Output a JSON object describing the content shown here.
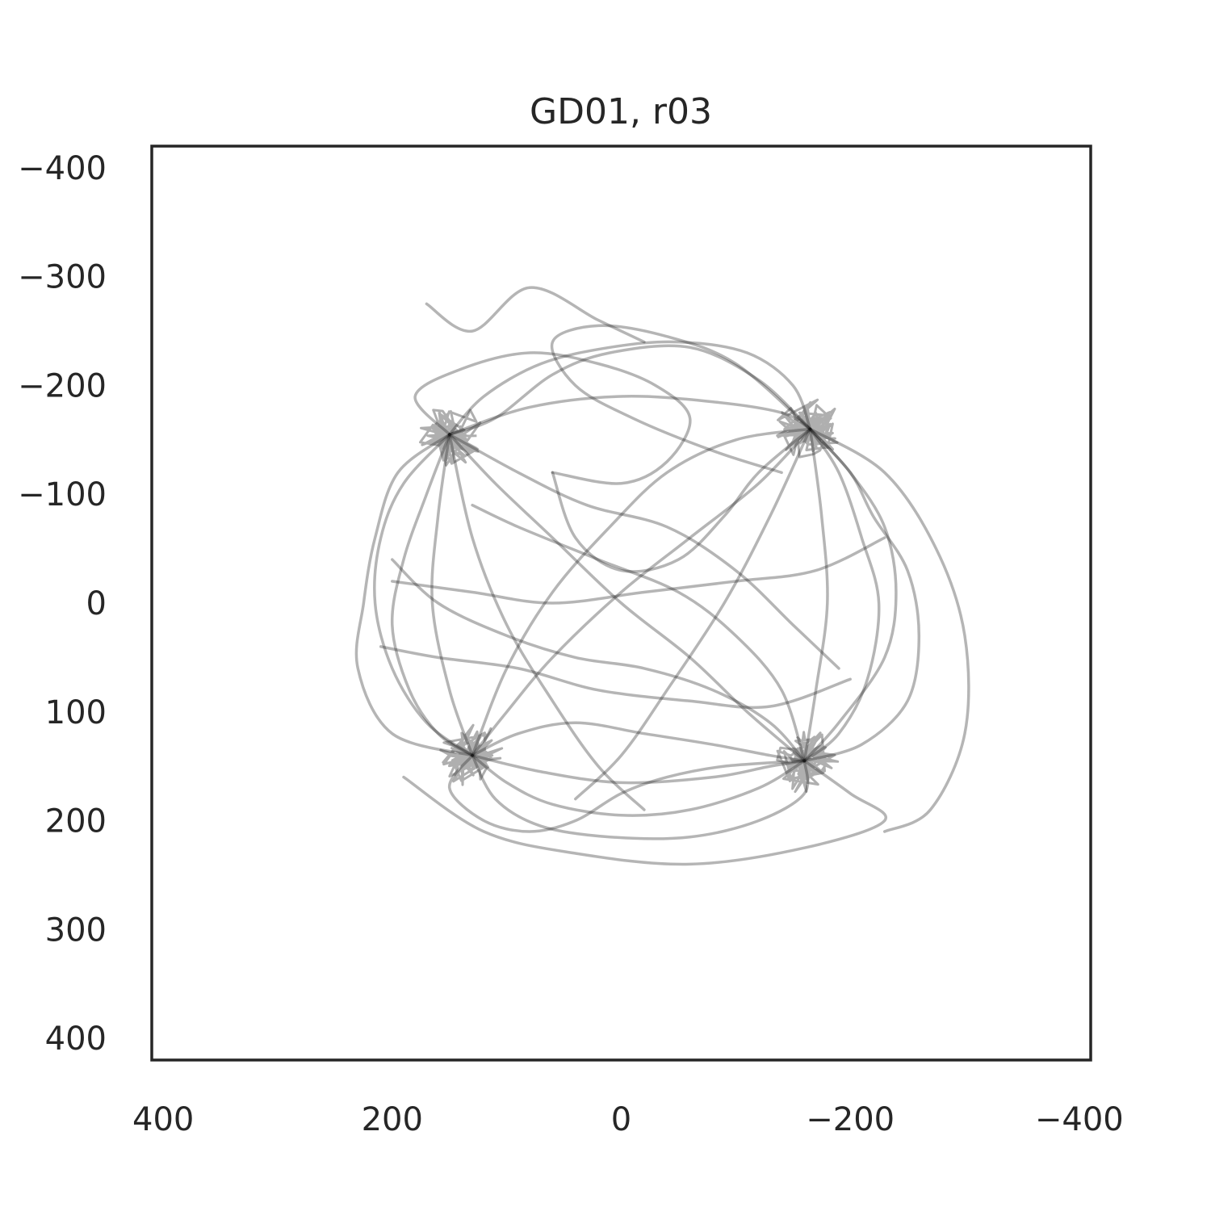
{
  "chart_data": {
    "type": "line",
    "title": "GD01, r03",
    "xlabel": "",
    "ylabel": "",
    "xlim": [
      410,
      -410
    ],
    "ylim": [
      -420,
      420
    ],
    "x_inverted": true,
    "y_inverted": true,
    "grid": false,
    "x_ticks": [
      400,
      200,
      0,
      -200,
      -400
    ],
    "x_tick_labels": [
      "400",
      "200",
      "0",
      "−200",
      "−400"
    ],
    "y_ticks": [
      -400,
      -300,
      -200,
      -100,
      0,
      100,
      200,
      300,
      400
    ],
    "y_tick_labels": [
      "−400",
      "−300",
      "−200",
      "−100",
      "0",
      "100",
      "200",
      "300",
      "400"
    ],
    "line_color": "#1a1a1a",
    "line_alpha": 0.32,
    "hotspots": [
      {
        "x": 150,
        "y": -155
      },
      {
        "x": -165,
        "y": -160
      },
      {
        "x": 130,
        "y": 140
      },
      {
        "x": -160,
        "y": 145
      }
    ],
    "series": [
      {
        "values": [
          [
            150,
            -155
          ],
          [
            110,
            -170
          ],
          [
            60,
            -210
          ],
          [
            10,
            -230
          ],
          [
            -60,
            -235
          ],
          [
            -120,
            -205
          ],
          [
            -165,
            -160
          ]
        ]
      },
      {
        "values": [
          [
            -165,
            -160
          ],
          [
            -190,
            -120
          ],
          [
            -210,
            -60
          ],
          [
            -225,
            0
          ],
          [
            -215,
            70
          ],
          [
            -190,
            120
          ],
          [
            -160,
            145
          ]
        ]
      },
      {
        "values": [
          [
            -160,
            145
          ],
          [
            -120,
            170
          ],
          [
            -60,
            190
          ],
          [
            0,
            195
          ],
          [
            60,
            185
          ],
          [
            100,
            165
          ],
          [
            130,
            140
          ]
        ]
      },
      {
        "values": [
          [
            130,
            140
          ],
          [
            170,
            110
          ],
          [
            200,
            60
          ],
          [
            215,
            0
          ],
          [
            210,
            -60
          ],
          [
            190,
            -110
          ],
          [
            150,
            -155
          ]
        ]
      },
      {
        "values": [
          [
            150,
            -155
          ],
          [
            110,
            -110
          ],
          [
            60,
            -60
          ],
          [
            0,
            0
          ],
          [
            -60,
            50
          ],
          [
            -110,
            100
          ],
          [
            -160,
            145
          ]
        ]
      },
      {
        "values": [
          [
            -165,
            -160
          ],
          [
            -120,
            -110
          ],
          [
            -60,
            -60
          ],
          [
            0,
            -10
          ],
          [
            60,
            50
          ],
          [
            100,
            100
          ],
          [
            130,
            140
          ]
        ]
      },
      {
        "values": [
          [
            150,
            -155
          ],
          [
            80,
            -180
          ],
          [
            0,
            -190
          ],
          [
            -80,
            -185
          ],
          [
            -140,
            -175
          ],
          [
            -165,
            -160
          ]
        ]
      },
      {
        "values": [
          [
            130,
            140
          ],
          [
            70,
            155
          ],
          [
            0,
            165
          ],
          [
            -80,
            160
          ],
          [
            -130,
            150
          ],
          [
            -160,
            145
          ]
        ]
      },
      {
        "values": [
          [
            150,
            -155
          ],
          [
            160,
            -80
          ],
          [
            165,
            0
          ],
          [
            150,
            80
          ],
          [
            130,
            140
          ]
        ]
      },
      {
        "values": [
          [
            -165,
            -160
          ],
          [
            -175,
            -80
          ],
          [
            -180,
            0
          ],
          [
            -170,
            80
          ],
          [
            -160,
            145
          ]
        ]
      },
      {
        "values": [
          [
            170,
            -275
          ],
          [
            130,
            -250
          ],
          [
            80,
            -290
          ],
          [
            20,
            -260
          ],
          [
            -20,
            -240
          ]
        ]
      },
      {
        "values": [
          [
            -160,
            145
          ],
          [
            -200,
            175
          ],
          [
            -230,
            200
          ],
          [
            -160,
            225
          ],
          [
            -60,
            240
          ],
          [
            40,
            230
          ],
          [
            120,
            210
          ],
          [
            190,
            160
          ]
        ]
      },
      {
        "values": [
          [
            -165,
            -160
          ],
          [
            -230,
            -120
          ],
          [
            -275,
            -50
          ],
          [
            -300,
            30
          ],
          [
            -300,
            120
          ],
          [
            -270,
            190
          ],
          [
            -230,
            210
          ]
        ]
      },
      {
        "values": [
          [
            150,
            -155
          ],
          [
            195,
            -120
          ],
          [
            215,
            -60
          ],
          [
            225,
            0
          ],
          [
            230,
            60
          ],
          [
            200,
            120
          ],
          [
            130,
            140
          ]
        ]
      },
      {
        "values": [
          [
            -165,
            -160
          ],
          [
            -100,
            -220
          ],
          [
            -40,
            -245
          ],
          [
            20,
            -255
          ],
          [
            60,
            -240
          ],
          [
            40,
            -200
          ],
          [
            -10,
            -170
          ],
          [
            -80,
            -140
          ],
          [
            -140,
            -120
          ]
        ]
      },
      {
        "values": [
          [
            130,
            140
          ],
          [
            100,
            60
          ],
          [
            60,
            -10
          ],
          [
            10,
            -70
          ],
          [
            -40,
            -120
          ],
          [
            -100,
            -150
          ],
          [
            -165,
            -160
          ]
        ]
      },
      {
        "values": [
          [
            150,
            -155
          ],
          [
            90,
            -120
          ],
          [
            30,
            -90
          ],
          [
            -40,
            -70
          ],
          [
            -100,
            -30
          ],
          [
            -150,
            20
          ],
          [
            -190,
            60
          ]
        ]
      },
      {
        "values": [
          [
            -160,
            145
          ],
          [
            -140,
            80
          ],
          [
            -100,
            30
          ],
          [
            -50,
            -10
          ],
          [
            20,
            -40
          ],
          [
            90,
            -70
          ],
          [
            130,
            -90
          ]
        ]
      },
      {
        "values": [
          [
            210,
            40
          ],
          [
            160,
            50
          ],
          [
            90,
            60
          ],
          [
            20,
            80
          ],
          [
            -60,
            90
          ],
          [
            -130,
            95
          ],
          [
            -200,
            70
          ]
        ]
      },
      {
        "values": [
          [
            -230,
            -60
          ],
          [
            -170,
            -30
          ],
          [
            -100,
            -20
          ],
          [
            -20,
            -10
          ],
          [
            60,
            0
          ],
          [
            130,
            -10
          ],
          [
            200,
            -20
          ]
        ]
      },
      {
        "values": [
          [
            150,
            -155
          ],
          [
            130,
            -60
          ],
          [
            100,
            20
          ],
          [
            60,
            90
          ],
          [
            20,
            150
          ],
          [
            -20,
            190
          ]
        ]
      },
      {
        "values": [
          [
            -165,
            -160
          ],
          [
            -130,
            -80
          ],
          [
            -90,
            0
          ],
          [
            -40,
            80
          ],
          [
            0,
            140
          ],
          [
            40,
            180
          ]
        ]
      },
      {
        "values": [
          [
            130,
            140
          ],
          [
            150,
            170
          ],
          [
            120,
            200
          ],
          [
            80,
            210
          ],
          [
            40,
            200
          ],
          [
            0,
            175
          ],
          [
            -40,
            160
          ],
          [
            -90,
            150
          ],
          [
            -160,
            145
          ]
        ]
      },
      {
        "values": [
          [
            -160,
            145
          ],
          [
            -210,
            130
          ],
          [
            -250,
            90
          ],
          [
            -260,
            30
          ],
          [
            -250,
            -30
          ],
          [
            -220,
            -80
          ],
          [
            -200,
            -120
          ],
          [
            -165,
            -160
          ]
        ]
      },
      {
        "values": [
          [
            150,
            -155
          ],
          [
            180,
            -190
          ],
          [
            140,
            -215
          ],
          [
            80,
            -230
          ],
          [
            20,
            -220
          ],
          [
            -30,
            -200
          ],
          [
            -60,
            -170
          ],
          [
            -40,
            -130
          ],
          [
            0,
            -110
          ],
          [
            60,
            -120
          ]
        ]
      },
      {
        "values": [
          [
            60,
            -120
          ],
          [
            40,
            -60
          ],
          [
            0,
            -30
          ],
          [
            -50,
            -40
          ],
          [
            -90,
            -80
          ],
          [
            -120,
            -120
          ],
          [
            -165,
            -160
          ]
        ]
      },
      {
        "values": [
          [
            130,
            140
          ],
          [
            90,
            120
          ],
          [
            40,
            110
          ],
          [
            -20,
            120
          ],
          [
            -80,
            130
          ],
          [
            -130,
            140
          ],
          [
            -160,
            145
          ]
        ]
      },
      {
        "values": [
          [
            -160,
            145
          ],
          [
            -130,
            110
          ],
          [
            -80,
            80
          ],
          [
            -20,
            60
          ],
          [
            40,
            50
          ],
          [
            100,
            30
          ],
          [
            160,
            0
          ],
          [
            200,
            -40
          ]
        ]
      },
      {
        "values": [
          [
            150,
            -155
          ],
          [
            170,
            -100
          ],
          [
            190,
            -40
          ],
          [
            200,
            20
          ],
          [
            185,
            80
          ],
          [
            160,
            120
          ],
          [
            130,
            140
          ]
        ]
      },
      {
        "values": [
          [
            -165,
            -160
          ],
          [
            -150,
            -200
          ],
          [
            -110,
            -230
          ],
          [
            -50,
            -240
          ],
          [
            10,
            -235
          ],
          [
            70,
            -220
          ],
          [
            120,
            -190
          ],
          [
            150,
            -155
          ]
        ]
      },
      {
        "values": [
          [
            130,
            140
          ],
          [
            110,
            180
          ],
          [
            70,
            205
          ],
          [
            10,
            215
          ],
          [
            -60,
            215
          ],
          [
            -120,
            200
          ],
          [
            -160,
            175
          ],
          [
            -160,
            145
          ]
        ]
      },
      {
        "values": [
          [
            -160,
            145
          ],
          [
            -190,
            110
          ],
          [
            -230,
            50
          ],
          [
            -240,
            -10
          ],
          [
            -230,
            -70
          ],
          [
            -200,
            -120
          ],
          [
            -165,
            -160
          ]
        ]
      }
    ]
  }
}
